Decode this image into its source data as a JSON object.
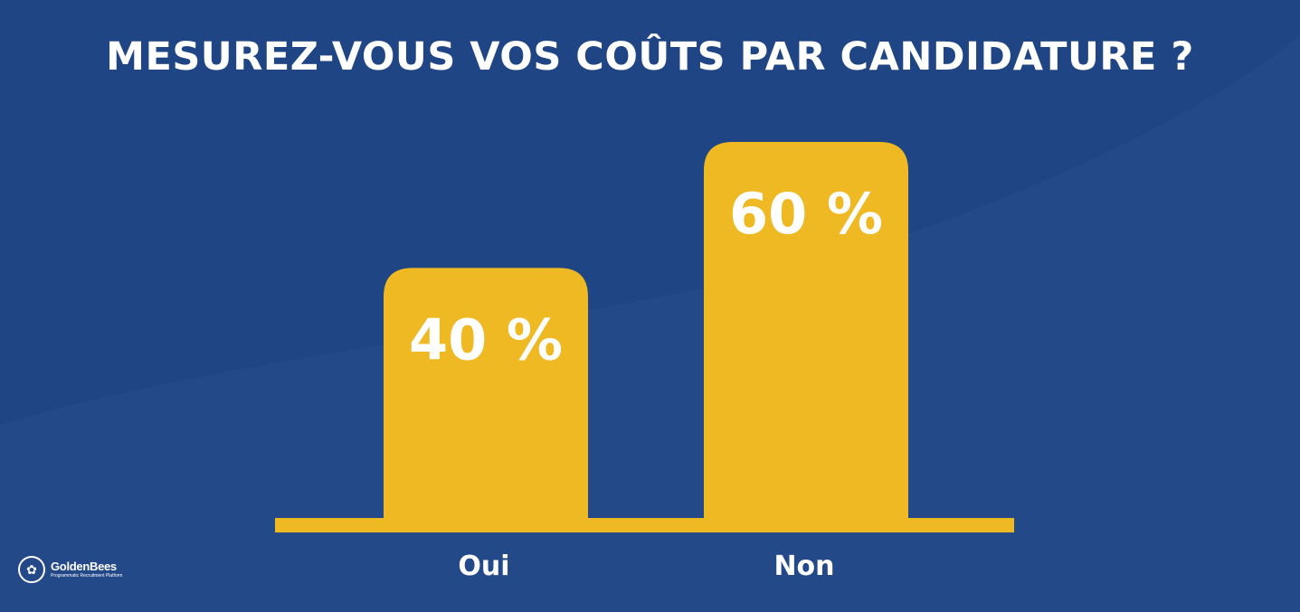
{
  "chart_data": {
    "type": "bar",
    "title": "MESUREZ-VOUS VOS COÛTS PAR CANDIDATURE ?",
    "categories": [
      "Oui",
      "Non"
    ],
    "values": [
      40,
      60
    ],
    "value_labels": [
      "40 %",
      "60 %"
    ],
    "ylim": [
      0,
      60
    ],
    "grid": false,
    "legend": "none",
    "colors": {
      "bar": "#efb923",
      "baseline": "#efb923",
      "background": "#1f4585",
      "text": "#ffffff"
    }
  },
  "logo": {
    "name": "GoldenBees",
    "tagline": "Programmatic Recruitment Platform"
  }
}
